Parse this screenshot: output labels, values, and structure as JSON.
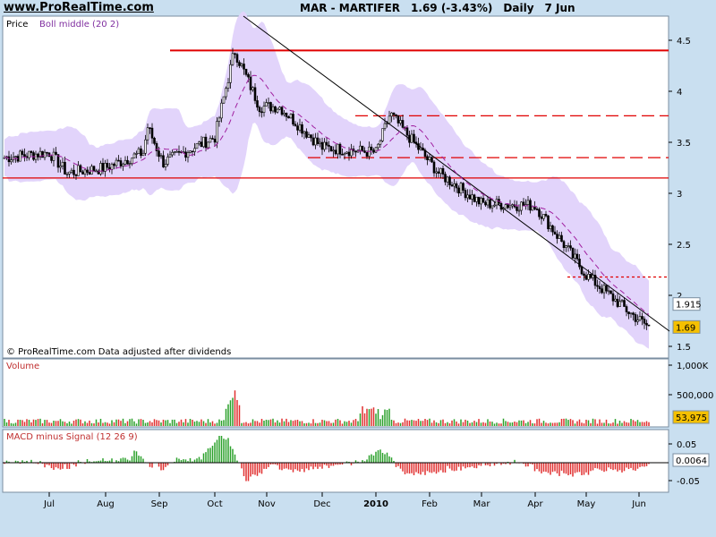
{
  "header": {
    "site": "www.ProRealTime.com",
    "symbol": "MAR - MARTIFER",
    "quote": "1.69 (-3.43%)",
    "period": "Daily",
    "date": "7 Jun"
  },
  "chart_data": [
    {
      "type": "candlestick",
      "panel": "price",
      "legend": [
        "Price",
        "Boll middle (20 2)"
      ],
      "yticks": [
        "4.5",
        "4",
        "3.5",
        "3",
        "2.5",
        "2",
        "1.5"
      ],
      "ylim": [
        1.45,
        4.75
      ],
      "xticks": [
        "Jul",
        "Aug",
        "Sep",
        "Oct",
        "Nov",
        "Dec",
        "2010",
        "Feb",
        "Mar",
        "Apr",
        "May",
        "Jun"
      ],
      "price_anchors": [
        [
          "Jun",
          3.35
        ],
        [
          "Jul",
          3.4
        ],
        [
          "Jul-mid",
          3.2
        ],
        [
          "Aug",
          3.25
        ],
        [
          "Aug-end",
          3.4
        ],
        [
          "Sep-start",
          3.65
        ],
        [
          "Sep-mid",
          3.3
        ],
        [
          "Oct-start",
          3.55
        ],
        [
          "Oct-mid",
          4.4
        ],
        [
          "Oct-end",
          3.85
        ],
        [
          "Nov",
          3.85
        ],
        [
          "Dec",
          3.45
        ],
        [
          "2010",
          3.4
        ],
        [
          "Jan-end",
          3.78
        ],
        [
          "Feb",
          3.2
        ],
        [
          "Mar",
          2.9
        ],
        [
          "Apr",
          2.88
        ],
        [
          "Apr-end",
          2.5
        ],
        [
          "May",
          2.2
        ],
        [
          "May-end",
          1.82
        ],
        [
          "Jun",
          1.69
        ]
      ],
      "horizontal_lines": [
        {
          "value": 4.4,
          "style": "solid",
          "color": "#e00000"
        },
        {
          "value": 3.76,
          "style": "dashed",
          "color": "#e00000"
        },
        {
          "value": 3.35,
          "style": "dashed",
          "color": "#e00000"
        },
        {
          "value": 3.15,
          "style": "solid",
          "color": "#e00000"
        },
        {
          "value": 2.18,
          "style": "dotted",
          "color": "#e00000"
        }
      ],
      "trendline": {
        "from": [
          272,
          4.72
        ],
        "to": [
          748,
          1.72
        ],
        "color": "#000000"
      },
      "markers": [
        {
          "value": 1.915,
          "label": "1.915"
        },
        {
          "value": 1.69,
          "label": "1.69",
          "color": "#f5c000"
        }
      ],
      "annotation": "© ProRealTime.com Data adjusted after dividends"
    },
    {
      "type": "bar",
      "panel": "volume",
      "title": "Volume",
      "yticks": [
        "1,000K",
        "500,000"
      ],
      "ylim": [
        0,
        1100000
      ],
      "last_value": "53,975"
    },
    {
      "type": "bar",
      "panel": "macd",
      "title": "MACD minus Signal (12 26 9)",
      "yticks": [
        "0.05",
        "-0.05"
      ],
      "ylim": [
        -0.075,
        0.075
      ],
      "last_value": "0.0064"
    }
  ],
  "colors": {
    "background": "#c9dff0",
    "panel": "#ffffff",
    "band": "#e2d4fb",
    "up": "#2aa02a",
    "down": "#e03030",
    "accent": "#e00000",
    "highlight": "#f5c000"
  }
}
